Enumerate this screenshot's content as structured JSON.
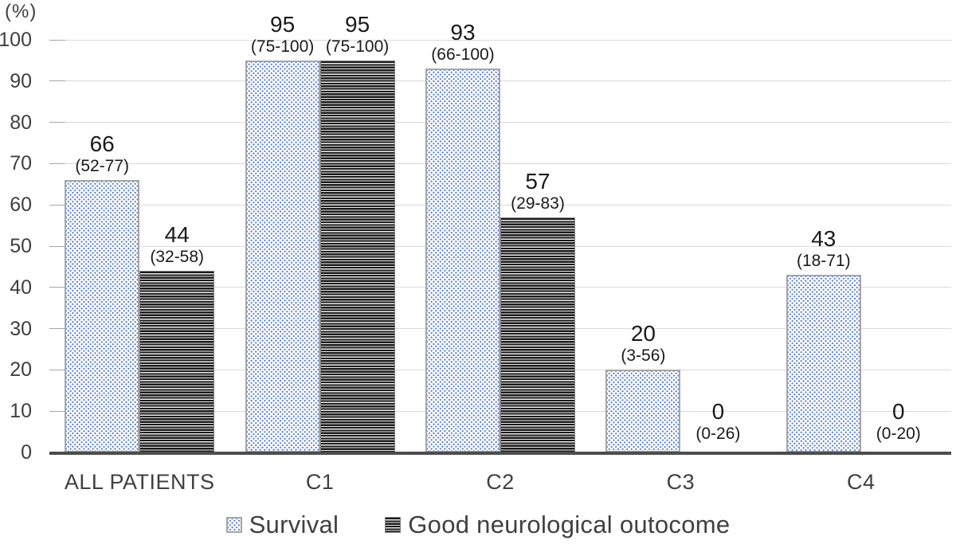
{
  "chart_data": {
    "type": "bar",
    "title": "",
    "unit_label": "(%)",
    "xlabel": "",
    "ylabel": "(%)",
    "ylim": [
      0,
      100
    ],
    "ytick_step": 10,
    "yticks": [
      0,
      10,
      20,
      30,
      40,
      50,
      60,
      70,
      80,
      90,
      100
    ],
    "grid": true,
    "legend_position": "bottom",
    "categories": [
      "ALL PATIENTS",
      "C1",
      "C2",
      "C3",
      "C4"
    ],
    "series": [
      {
        "name": "Survival",
        "pattern": "blue-dotted",
        "values": [
          66,
          95,
          93,
          20,
          43
        ],
        "range_labels": [
          "(52-77)",
          "(75-100)",
          "(66-100)",
          "(3-56)",
          "(18-71)"
        ]
      },
      {
        "name": "Good neurological outocome",
        "pattern": "dark-horizontal-stripes",
        "values": [
          44,
          95,
          57,
          0,
          0
        ],
        "range_labels": [
          "(32-58)",
          "(75-100)",
          "(29-83)",
          "(0-26)",
          "(0-20)"
        ]
      }
    ],
    "colors": {
      "dot_pattern_blue": "#5a7ec9",
      "stripe_dark": "#1b1b1b",
      "gridline": "#d9d9d9",
      "axis_baseline": "#4d4d4d",
      "bar_border_dots": "#a6a6a6",
      "bar_border_stripes": "#7f7f7f",
      "text": "#404040",
      "label_text": "#1a1a1a",
      "background": "#ffffff"
    }
  }
}
